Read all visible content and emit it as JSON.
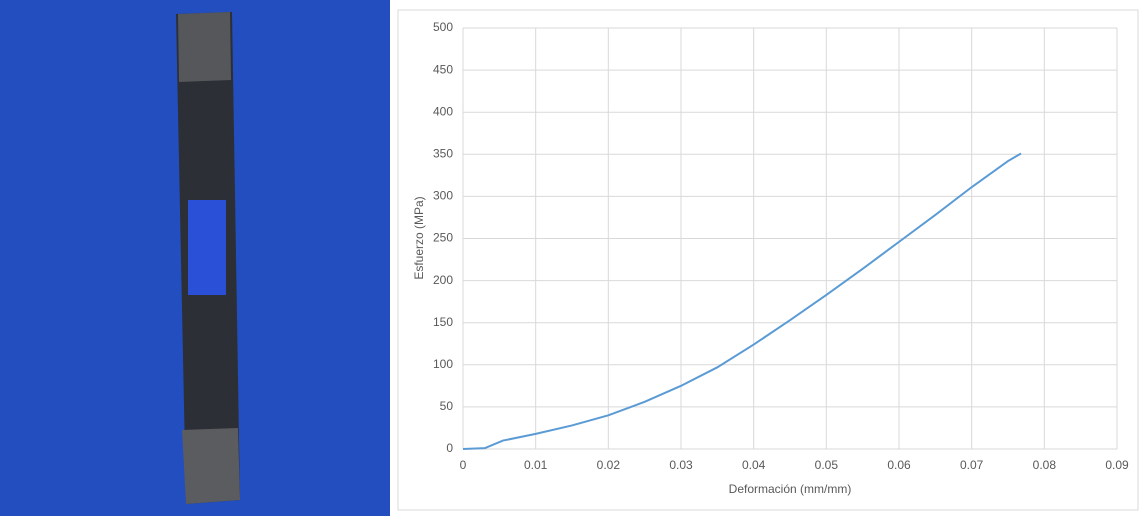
{
  "chart_data": {
    "type": "line",
    "x_label": "Deformación (mm/mm)",
    "y_label": "Esfuerzo (MPa)",
    "x": [
      0,
      0.003,
      0.0055,
      0.01,
      0.015,
      0.02,
      0.025,
      0.03,
      0.035,
      0.04,
      0.045,
      0.05,
      0.055,
      0.06,
      0.065,
      0.07,
      0.075,
      0.0768
    ],
    "series": [
      {
        "color": "#5b9bd5",
        "values": [
          0,
          1,
          10,
          18,
          28,
          40,
          56,
          75,
          97,
          124,
          153,
          183,
          214,
          246,
          278,
          311,
          342,
          351
        ]
      }
    ],
    "xlim": [
      0,
      0.09
    ],
    "xticks": [
      0,
      0.01,
      0.02,
      0.03,
      0.04,
      0.05,
      0.06,
      0.07,
      0.08,
      0.09
    ],
    "ylim": [
      0,
      500
    ],
    "yticks": [
      0,
      50,
      100,
      150,
      200,
      250,
      300,
      350,
      400,
      450,
      500
    ],
    "grid": true
  }
}
